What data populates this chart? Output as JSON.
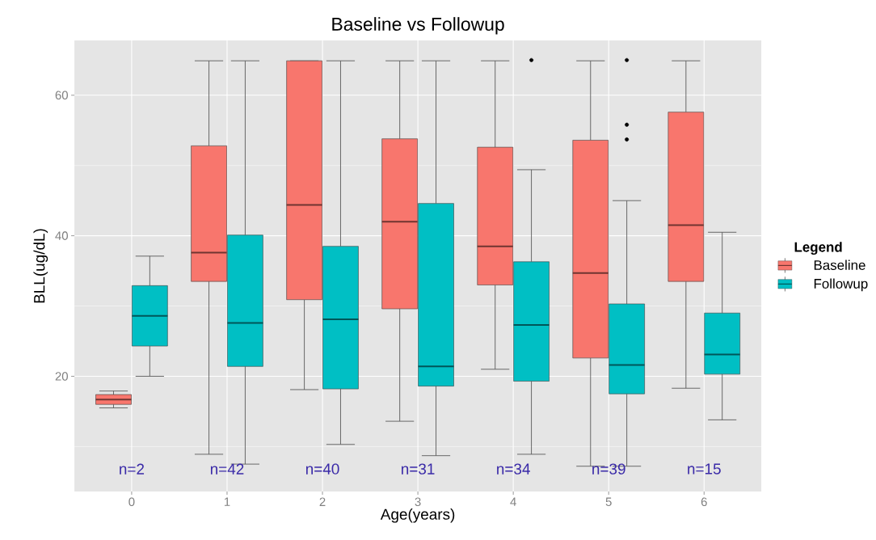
{
  "chart_data": {
    "type": "box",
    "title": "Baseline vs Followup",
    "xlabel": "Age(years)",
    "ylabel": "BLL(ug/dL)",
    "legend_title": "Legend",
    "categories": [
      "0",
      "1",
      "2",
      "3",
      "4",
      "5",
      "6"
    ],
    "ylim": [
      3.6,
      67.8
    ],
    "yticks": [
      {
        "value": 10,
        "label": null
      },
      20,
      {
        "value": 30,
        "label": null
      },
      40,
      {
        "value": 50,
        "label": null
      },
      60
    ],
    "grid": true,
    "legend": "right",
    "series": [
      {
        "name": "Baseline",
        "color": "#f8766d",
        "boxes": [
          {
            "low": 15.5,
            "q1": 16.0,
            "median": 16.7,
            "q3": 17.4,
            "high": 17.9
          },
          {
            "low": 8.9,
            "q1": 33.5,
            "median": 37.6,
            "q3": 52.8,
            "high": 64.9
          },
          {
            "low": 18.1,
            "q1": 30.9,
            "median": 44.4,
            "q3": 64.9,
            "high": 64.9
          },
          {
            "low": 13.6,
            "q1": 29.6,
            "median": 42.0,
            "q3": 53.8,
            "high": 64.9
          },
          {
            "low": 21.0,
            "q1": 33.0,
            "median": 38.5,
            "q3": 52.6,
            "high": 64.9
          },
          {
            "low": 7.2,
            "q1": 22.6,
            "median": 34.7,
            "q3": 53.6,
            "high": 64.9
          },
          {
            "low": 18.3,
            "q1": 33.5,
            "median": 41.5,
            "q3": 57.6,
            "high": 64.9
          }
        ]
      },
      {
        "name": "Followup",
        "color": "#00bfc4",
        "boxes": [
          {
            "low": 20.0,
            "q1": 24.3,
            "median": 28.6,
            "q3": 32.9,
            "high": 37.1
          },
          {
            "low": 7.5,
            "q1": 21.4,
            "median": 27.6,
            "q3": 40.1,
            "high": 64.9
          },
          {
            "low": 10.3,
            "q1": 18.2,
            "median": 28.1,
            "q3": 38.5,
            "high": 64.9
          },
          {
            "low": 8.7,
            "q1": 18.6,
            "median": 21.4,
            "q3": 44.6,
            "high": 64.9
          },
          {
            "low": 8.9,
            "q1": 19.3,
            "median": 27.3,
            "q3": 36.3,
            "high": 49.4,
            "outliers": [
              65.0
            ]
          },
          {
            "low": 7.2,
            "q1": 17.5,
            "median": 21.6,
            "q3": 30.3,
            "high": 45.0,
            "outliers": [
              65.0,
              55.8,
              53.7
            ]
          },
          {
            "low": 13.8,
            "q1": 20.3,
            "median": 23.1,
            "q3": 29.0,
            "high": 40.5
          }
        ]
      }
    ],
    "annotations": [
      "n=2",
      "n=42",
      "n=40",
      "n=31",
      "n=34",
      "n=39",
      "n=15"
    ]
  }
}
